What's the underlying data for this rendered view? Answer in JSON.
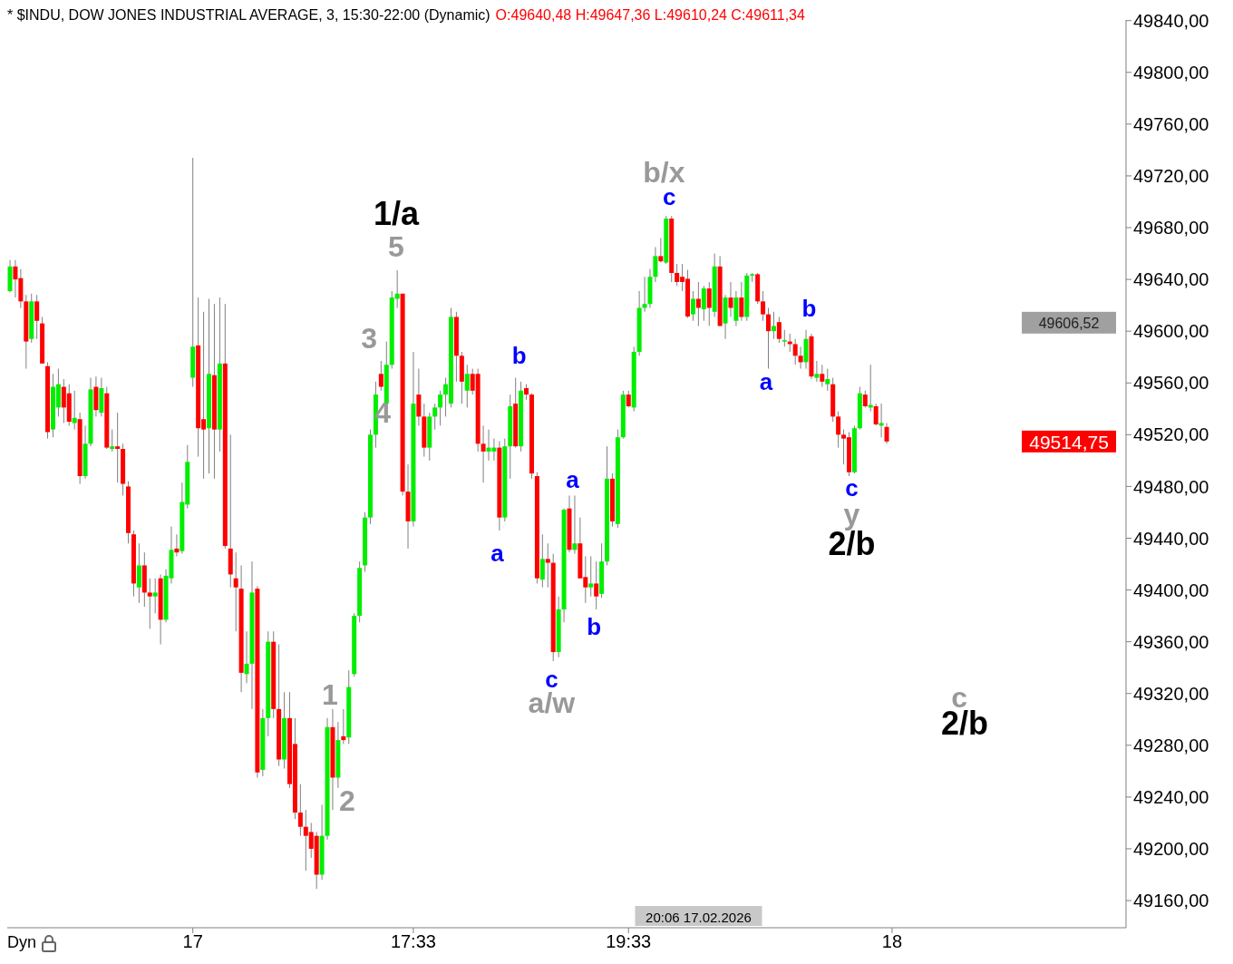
{
  "chart_data": {
    "type": "candlestick",
    "title": "* $INDU, DOW JONES INDUSTRIAL AVERAGE, 3, 15:30-22:00 (Dynamic)",
    "subtitle": "O:49640,48 H:49647,36 L:49610,24 C:49611,34",
    "categories": [
      null,
      null,
      null,
      null,
      null,
      null,
      null,
      null,
      null,
      null,
      null,
      null,
      null,
      null,
      null,
      null,
      null,
      null,
      null,
      null,
      null,
      null,
      null,
      null,
      null,
      null,
      null,
      null,
      null,
      null,
      null,
      null,
      null,
      null,
      "17",
      null,
      null,
      null,
      null,
      null,
      null,
      null,
      null,
      null,
      null,
      null,
      null,
      null,
      null,
      null,
      null,
      null,
      null,
      null,
      null,
      null,
      null,
      null,
      null,
      null,
      null,
      null,
      null,
      null,
      null,
      null,
      null,
      null,
      null,
      null,
      null,
      null,
      null,
      null,
      null,
      "17:33",
      null,
      null,
      null,
      null,
      null,
      null,
      null,
      null,
      null,
      null,
      null,
      null,
      null,
      null,
      null,
      null,
      null,
      null,
      null,
      null,
      null,
      null,
      null,
      null,
      null,
      null,
      null,
      null,
      null,
      null,
      null,
      null,
      null,
      null,
      null,
      null,
      null,
      null,
      null,
      "19:33",
      null,
      null,
      null,
      null,
      null,
      null,
      null,
      null,
      null,
      null,
      null,
      null,
      null,
      null,
      null,
      null,
      null,
      null,
      null,
      null,
      null,
      null,
      null,
      null,
      null,
      null,
      null,
      null,
      null,
      null,
      null,
      null,
      null,
      null,
      null,
      null,
      null,
      null,
      null,
      null,
      null,
      null,
      null,
      null,
      null,
      null,
      null,
      null,
      "18",
      null,
      null,
      null,
      null,
      null,
      null,
      null,
      null,
      null,
      null,
      null,
      null,
      null,
      null,
      null,
      null,
      null,
      null,
      null,
      null,
      null,
      null,
      null,
      null,
      null,
      null,
      null,
      null,
      null,
      null,
      null,
      null,
      null,
      null,
      null,
      null,
      null,
      null,
      null,
      null,
      null,
      null,
      null
    ],
    "ohlc": [
      [
        49631,
        49655,
        49630,
        49650
      ],
      [
        49650,
        49655,
        49626,
        49640
      ],
      [
        49641,
        49648,
        49618,
        49623
      ],
      [
        49623,
        49628,
        49571,
        49592
      ],
      [
        49594,
        49629,
        49591,
        49623
      ],
      [
        49623,
        49628,
        49594,
        49608
      ],
      [
        49606,
        49611,
        49575,
        49575
      ],
      [
        49573,
        49576,
        49517,
        49522
      ],
      [
        49524,
        49567,
        49518,
        49557
      ],
      [
        49541,
        49571,
        49534,
        49559
      ],
      [
        49557,
        49563,
        49529,
        49541
      ],
      [
        49552,
        49559,
        49527,
        49530
      ],
      [
        49529,
        49554,
        49524,
        49533
      ],
      [
        49532,
        49537,
        49482,
        49488
      ],
      [
        49488,
        49527,
        49486,
        49513
      ],
      [
        49513,
        49564,
        49511,
        49555
      ],
      [
        49557,
        49565,
        49534,
        49539
      ],
      [
        49537,
        49564,
        49534,
        49556
      ],
      [
        49552,
        49557,
        49509,
        49510
      ],
      [
        49509,
        49524,
        49507,
        49511
      ],
      [
        49511,
        49537,
        49483,
        49509
      ],
      [
        49509,
        49513,
        49473,
        49482
      ],
      [
        49480,
        49484,
        49436,
        49444
      ],
      [
        49443,
        49446,
        49395,
        49405
      ],
      [
        49402,
        49436,
        49390,
        49419
      ],
      [
        49419,
        49429,
        49387,
        49398
      ],
      [
        49398,
        49409,
        49370,
        49395
      ],
      [
        49395,
        49409,
        49382,
        49398
      ],
      [
        49409,
        49412,
        49358,
        49377
      ],
      [
        49377,
        49416,
        49375,
        49411
      ],
      [
        49409,
        49449,
        49405,
        49431
      ],
      [
        49432,
        49443,
        49426,
        49429
      ],
      [
        49430,
        49483,
        49428,
        49468
      ],
      [
        49466,
        49512,
        49463,
        49499
      ],
      [
        49564,
        49734,
        49557,
        49588
      ],
      [
        49589,
        49626,
        49503,
        49525
      ],
      [
        49532,
        49615,
        49486,
        49524
      ],
      [
        49525,
        49625,
        49490,
        49567
      ],
      [
        49566,
        49621,
        49486,
        49524
      ],
      [
        49524,
        49626,
        49507,
        49575
      ],
      [
        49575,
        49621,
        49432,
        49434
      ],
      [
        49432,
        49520,
        49402,
        49412
      ],
      [
        49409,
        49429,
        49368,
        49402
      ],
      [
        49401,
        49419,
        49321,
        49336
      ],
      [
        49335,
        49368,
        49328,
        49343
      ],
      [
        49343,
        49422,
        49308,
        49398
      ],
      [
        49401,
        49403,
        49255,
        49259
      ],
      [
        49261,
        49308,
        49256,
        49301
      ],
      [
        49301,
        49368,
        49287,
        49360
      ],
      [
        49360,
        49368,
        49301,
        49308
      ],
      [
        49308,
        49358,
        49264,
        49269
      ],
      [
        49269,
        49321,
        49262,
        49301
      ],
      [
        49301,
        49321,
        49247,
        49250
      ],
      [
        49281,
        49301,
        49223,
        49228
      ],
      [
        49228,
        49250,
        49210,
        49217
      ],
      [
        49217,
        49230,
        49183,
        49210
      ],
      [
        49213,
        49220,
        49193,
        49200
      ],
      [
        49210,
        49213,
        49169,
        49180
      ],
      [
        49180,
        49234,
        49176,
        49210
      ],
      [
        49210,
        49301,
        49207,
        49294
      ],
      [
        49294,
        49308,
        49230,
        49255
      ],
      [
        49255,
        49298,
        49247,
        49284
      ],
      [
        49287,
        49308,
        49281,
        49284
      ],
      [
        49286,
        49338,
        49281,
        49325
      ],
      [
        49335,
        49382,
        49333,
        49380
      ],
      [
        49380,
        49422,
        49375,
        49417
      ],
      [
        49419,
        49460,
        49414,
        49456
      ],
      [
        49456,
        49524,
        49451,
        49520
      ],
      [
        49520,
        49561,
        49510,
        49551
      ],
      [
        49567,
        49577,
        49554,
        49557
      ],
      [
        49544,
        49592,
        49534,
        49574
      ],
      [
        49574,
        49631,
        49571,
        49626
      ],
      [
        49625,
        49647,
        49618,
        49629
      ],
      [
        49629,
        49629,
        49473,
        49476
      ],
      [
        49476,
        49497,
        49432,
        49453
      ],
      [
        49453,
        49584,
        49449,
        49544
      ],
      [
        49551,
        49571,
        49527,
        49534
      ],
      [
        49534,
        49544,
        49503,
        49510
      ],
      [
        49510,
        49537,
        49500,
        49534
      ],
      [
        49534,
        49544,
        49524,
        49541
      ],
      [
        49541,
        49554,
        49527,
        49551
      ],
      [
        49551,
        49564,
        49534,
        49559
      ],
      [
        49544,
        49618,
        49541,
        49611
      ],
      [
        49611,
        49615,
        49561,
        49581
      ],
      [
        49581,
        49584,
        49544,
        49561
      ],
      [
        49554,
        49574,
        49541,
        49567
      ],
      [
        49567,
        49571,
        49551,
        49554
      ],
      [
        49567,
        49571,
        49507,
        49513
      ],
      [
        49513,
        49527,
        49483,
        49507
      ],
      [
        49507,
        49524,
        49500,
        49510
      ],
      [
        49507,
        49517,
        49500,
        49510
      ],
      [
        49510,
        49515,
        49446,
        49456
      ],
      [
        49456,
        49517,
        49453,
        49511
      ],
      [
        49511,
        49551,
        49486,
        49542
      ],
      [
        49544,
        49564,
        49510,
        49511
      ],
      [
        49511,
        49561,
        49507,
        49554
      ],
      [
        49556,
        49559,
        49547,
        49551
      ],
      [
        49551,
        49552,
        49486,
        49490
      ],
      [
        49488,
        49491,
        49405,
        49409
      ],
      [
        49408,
        49443,
        49402,
        49424
      ],
      [
        49424,
        49436,
        49402,
        49421
      ],
      [
        49421,
        49428,
        49345,
        49352
      ],
      [
        49352,
        49395,
        49348,
        49385
      ],
      [
        49385,
        49463,
        49375,
        49462
      ],
      [
        49463,
        49473,
        49429,
        49431
      ],
      [
        49431,
        49473,
        49428,
        49436
      ],
      [
        49436,
        49456,
        49409,
        49409
      ],
      [
        49410,
        49426,
        49390,
        49402
      ],
      [
        49402,
        49426,
        49395,
        49405
      ],
      [
        49405,
        49422,
        49385,
        49395
      ],
      [
        49397,
        49436,
        49394,
        49422
      ],
      [
        49422,
        49511,
        49419,
        49486
      ],
      [
        49486,
        49490,
        49449,
        49453
      ],
      [
        49451,
        49524,
        49448,
        49518
      ],
      [
        49518,
        49554,
        49517,
        49551
      ],
      [
        49551,
        49554,
        49541,
        49542
      ],
      [
        49541,
        49588,
        49538,
        49584
      ],
      [
        49584,
        49631,
        49581,
        49618
      ],
      [
        49618,
        49642,
        49615,
        49621
      ],
      [
        49621,
        49648,
        49618,
        49642
      ],
      [
        49642,
        49665,
        49638,
        49658
      ],
      [
        49658,
        49672,
        49653,
        49654
      ],
      [
        49653,
        49689,
        49652,
        49687
      ],
      [
        49687,
        49689,
        49638,
        49645
      ],
      [
        49645,
        49652,
        49635,
        49638
      ],
      [
        49642,
        49652,
        49631,
        49638
      ],
      [
        49640.48,
        49647.36,
        49610.24,
        49611.34
      ],
      [
        49613,
        49631,
        49608,
        49625
      ],
      [
        49625,
        49638,
        49604,
        49618
      ],
      [
        49617,
        49635,
        49608,
        49633
      ],
      [
        49633,
        49638,
        49604,
        49618
      ],
      [
        49615,
        49660,
        49611,
        49650
      ],
      [
        49650,
        49658,
        49604,
        49604
      ],
      [
        49606,
        49628,
        49594,
        49626
      ],
      [
        49626,
        49638,
        49611,
        49618
      ],
      [
        49608,
        49631,
        49604,
        49626
      ],
      [
        49626,
        49638,
        49608,
        49611
      ],
      [
        49611,
        49645,
        49608,
        49643
      ],
      [
        49643,
        49645,
        49638,
        49644
      ],
      [
        49644,
        49645,
        49621,
        49623
      ],
      [
        49623,
        49631,
        49608,
        49613
      ],
      [
        49613,
        49618,
        49571,
        49600
      ],
      [
        49600,
        49615,
        49594,
        49604
      ],
      [
        49607,
        49611,
        49591,
        49594
      ],
      [
        49592,
        49601,
        49588,
        49593
      ],
      [
        49592,
        49598,
        49584,
        49590
      ],
      [
        49590,
        49594,
        49574,
        49581
      ],
      [
        49581,
        49588,
        49571,
        49576
      ],
      [
        49576,
        49601,
        49571,
        49594
      ],
      [
        49596,
        49598,
        49563,
        49565
      ],
      [
        49564,
        49577,
        49561,
        49567
      ],
      [
        49567,
        49574,
        49557,
        49561
      ],
      [
        49559,
        49571,
        49554,
        49563
      ],
      [
        49559,
        49564,
        49530,
        49534
      ],
      [
        49534,
        49538,
        49510,
        49520
      ],
      [
        49520,
        49524,
        49497,
        49517
      ],
      [
        49518,
        49522,
        49488,
        49491
      ],
      [
        49491,
        49527,
        49490,
        49525
      ],
      [
        49525,
        49557,
        49524,
        49552
      ],
      [
        49551,
        49554,
        49541,
        49542
      ],
      [
        49541,
        49574,
        49538,
        49543
      ],
      [
        49542,
        49544,
        49527,
        49528
      ],
      [
        49527,
        49544,
        49518,
        49529
      ],
      [
        49526,
        49529,
        49513,
        49514.75
      ],
      null,
      null,
      null,
      null,
      null,
      null,
      null,
      null,
      null,
      null,
      null,
      null,
      null,
      null,
      null,
      null,
      null,
      null,
      null,
      null,
      null,
      null,
      null,
      null,
      null,
      null,
      null,
      null,
      null,
      null,
      null,
      null,
      null,
      null,
      null,
      null,
      null,
      null,
      null,
      null,
      null,
      null,
      null,
      null
    ],
    "ylim": [
      49139,
      49840.5
    ],
    "yticks": [
      {
        "value": 49160,
        "label": "49160,00"
      },
      {
        "value": 49200,
        "label": "49200,00"
      },
      {
        "value": 49240,
        "label": "49240,00"
      },
      {
        "value": 49280,
        "label": "49280,00"
      },
      {
        "value": 49320,
        "label": "49320,00"
      },
      {
        "value": 49360,
        "label": "49360,00"
      },
      {
        "value": 49400,
        "label": "49400,00"
      },
      {
        "value": 49440,
        "label": "49440,00"
      },
      {
        "value": 49480,
        "label": "49480,00"
      },
      {
        "value": 49520,
        "label": "49520,00"
      },
      {
        "value": 49560,
        "label": "49560,00"
      },
      {
        "value": 49600,
        "label": "49600,00"
      },
      {
        "value": 49640,
        "label": "49640,00"
      },
      {
        "value": 49680,
        "label": "49680,00"
      },
      {
        "value": 49720,
        "label": "49720,00"
      },
      {
        "value": 49760,
        "label": "49760,00"
      },
      {
        "value": 49800,
        "label": "49800,00"
      },
      {
        "value": 49840,
        "label": "49840,00"
      }
    ],
    "annotations": [
      "1/a",
      "5",
      "3",
      "4",
      "1",
      "2",
      "b",
      "a",
      "c",
      "a/w",
      "a",
      "b",
      "b/x",
      "c",
      "a",
      "b",
      "c",
      "y",
      "2/b",
      "c",
      "2/b",
      "20:06 17.02.2026",
      "49606,52",
      "49514,75",
      "Dyn"
    ]
  }
}
